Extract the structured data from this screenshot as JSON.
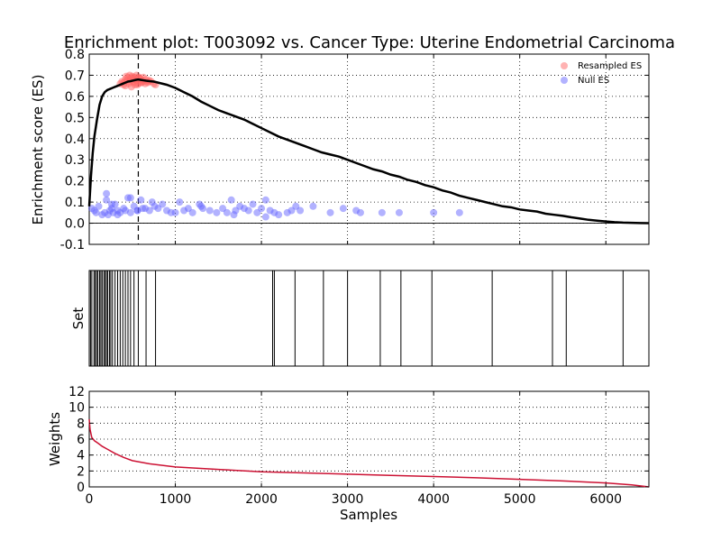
{
  "figure": {
    "title": "Enrichment plot: T003092 vs. Cancer Type: Uterine Endometrial Carcinoma",
    "xlabel": "Samples"
  },
  "chart_data": [
    {
      "type": "line",
      "panel": "enrichment",
      "ylabel": "Enrichment score (ES)",
      "xlim": [
        0,
        6500
      ],
      "ylim": [
        -0.1,
        0.8
      ],
      "yticks": [
        -0.1,
        0.0,
        0.1,
        0.2,
        0.3,
        0.4,
        0.5,
        0.6,
        0.7,
        0.8
      ],
      "xticks": [
        0,
        1000,
        2000,
        3000,
        4000,
        5000,
        6000
      ],
      "grid": true,
      "legend": {
        "position": "top-right",
        "entries": [
          "Resampled ES",
          "Null ES"
        ]
      },
      "peak_x": 570,
      "series": [
        {
          "name": "ES",
          "color": "#000000",
          "x": [
            0,
            20,
            40,
            60,
            90,
            120,
            150,
            180,
            210,
            240,
            270,
            300,
            330,
            360,
            390,
            420,
            450,
            480,
            510,
            540,
            570,
            600,
            630,
            660,
            700,
            750,
            800,
            900,
            1000,
            1100,
            1200,
            1300,
            1400,
            1500,
            1600,
            1700,
            1800,
            1900,
            2000,
            2100,
            2200,
            2300,
            2400,
            2500,
            2600,
            2700,
            2800,
            2900,
            3000,
            3100,
            3200,
            3300,
            3400,
            3500,
            3600,
            3700,
            3800,
            3900,
            4000,
            4100,
            4200,
            4300,
            4400,
            4500,
            4600,
            4700,
            4800,
            4900,
            5000,
            5100,
            5200,
            5300,
            5400,
            5500,
            5600,
            5700,
            5800,
            5900,
            6000,
            6100,
            6200,
            6300,
            6400,
            6500
          ],
          "y": [
            0.08,
            0.22,
            0.33,
            0.41,
            0.49,
            0.56,
            0.6,
            0.62,
            0.63,
            0.635,
            0.64,
            0.645,
            0.65,
            0.655,
            0.66,
            0.665,
            0.67,
            0.672,
            0.675,
            0.678,
            0.68,
            0.678,
            0.676,
            0.674,
            0.672,
            0.67,
            0.665,
            0.655,
            0.64,
            0.62,
            0.6,
            0.575,
            0.555,
            0.535,
            0.52,
            0.505,
            0.49,
            0.47,
            0.45,
            0.43,
            0.41,
            0.395,
            0.38,
            0.365,
            0.35,
            0.335,
            0.325,
            0.315,
            0.3,
            0.285,
            0.27,
            0.255,
            0.245,
            0.23,
            0.22,
            0.205,
            0.195,
            0.18,
            0.17,
            0.155,
            0.145,
            0.13,
            0.12,
            0.11,
            0.1,
            0.09,
            0.08,
            0.075,
            0.065,
            0.06,
            0.055,
            0.045,
            0.04,
            0.035,
            0.028,
            0.022,
            0.016,
            0.012,
            0.008,
            0.005,
            0.003,
            0.002,
            0.001,
            0.0
          ]
        },
        {
          "name": "Resampled ES",
          "type": "scatter",
          "color": "#ff6666",
          "x": [
            360,
            380,
            400,
            420,
            440,
            450,
            470,
            480,
            500,
            510,
            520,
            540,
            550,
            560,
            580,
            600,
            620,
            640,
            660,
            680,
            700,
            720,
            750,
            770,
            420,
            460,
            490,
            530,
            570,
            610,
            650,
            690,
            430,
            470,
            510,
            550,
            590,
            630,
            400,
            520,
            560,
            600
          ],
          "y": [
            0.66,
            0.67,
            0.665,
            0.68,
            0.675,
            0.69,
            0.67,
            0.685,
            0.695,
            0.67,
            0.68,
            0.69,
            0.675,
            0.685,
            0.69,
            0.68,
            0.675,
            0.67,
            0.68,
            0.665,
            0.675,
            0.67,
            0.66,
            0.655,
            0.65,
            0.66,
            0.645,
            0.655,
            0.66,
            0.665,
            0.66,
            0.67,
            0.695,
            0.7,
            0.69,
            0.7,
            0.685,
            0.69,
            0.655,
            0.665,
            0.655,
            0.665
          ]
        },
        {
          "name": "Null ES",
          "type": "scatter",
          "color": "#6666ff",
          "x": [
            30,
            60,
            80,
            110,
            150,
            180,
            200,
            220,
            240,
            260,
            280,
            300,
            330,
            360,
            400,
            420,
            450,
            480,
            520,
            560,
            600,
            650,
            700,
            730,
            760,
            800,
            850,
            900,
            950,
            1000,
            1050,
            1100,
            1150,
            1200,
            1280,
            1320,
            1400,
            1480,
            1550,
            1600,
            1650,
            1700,
            1750,
            1800,
            1850,
            1900,
            1950,
            2000,
            2050,
            2100,
            2150,
            2200,
            2300,
            2350,
            2400,
            2600,
            2800,
            2950,
            3100,
            3150,
            3400,
            3600,
            4000,
            4300,
            200,
            260,
            330,
            480,
            560,
            620,
            1300,
            1680,
            2050,
            2450
          ],
          "y": [
            0.07,
            0.06,
            0.05,
            0.08,
            0.04,
            0.05,
            0.14,
            0.04,
            0.06,
            0.07,
            0.05,
            0.09,
            0.06,
            0.05,
            0.07,
            0.06,
            0.12,
            0.05,
            0.08,
            0.06,
            0.11,
            0.07,
            0.06,
            0.1,
            0.08,
            0.07,
            0.09,
            0.06,
            0.05,
            0.05,
            0.1,
            0.06,
            0.07,
            0.05,
            0.09,
            0.07,
            0.06,
            0.05,
            0.07,
            0.05,
            0.11,
            0.06,
            0.08,
            0.07,
            0.06,
            0.09,
            0.05,
            0.07,
            0.11,
            0.06,
            0.05,
            0.04,
            0.05,
            0.06,
            0.08,
            0.08,
            0.05,
            0.07,
            0.06,
            0.05,
            0.05,
            0.05,
            0.05,
            0.05,
            0.11,
            0.09,
            0.04,
            0.12,
            0.06,
            0.07,
            0.08,
            0.04,
            0.03,
            0.06
          ]
        }
      ]
    },
    {
      "type": "rug",
      "panel": "set",
      "ylabel": "Set",
      "xlim": [
        0,
        6500
      ],
      "positions": [
        15,
        30,
        55,
        70,
        85,
        100,
        120,
        135,
        150,
        170,
        185,
        200,
        215,
        235,
        250,
        270,
        300,
        330,
        360,
        390,
        420,
        450,
        480,
        520,
        570,
        660,
        770,
        2130,
        2150,
        2390,
        2720,
        3000,
        3380,
        3620,
        3980,
        4680,
        5380,
        5540,
        6200
      ]
    },
    {
      "type": "line",
      "panel": "weights",
      "ylabel": "Weights",
      "xlim": [
        0,
        6500
      ],
      "ylim": [
        0,
        12
      ],
      "yticks": [
        0,
        2,
        4,
        6,
        8,
        10,
        12
      ],
      "xticks": [
        0,
        1000,
        2000,
        3000,
        4000,
        5000,
        6000
      ],
      "grid": true,
      "series": [
        {
          "name": "Weights",
          "color": "#cc1133",
          "x": [
            0,
            10,
            30,
            60,
            100,
            150,
            200,
            300,
            400,
            500,
            700,
            1000,
            1500,
            2000,
            2500,
            3000,
            3500,
            4000,
            4500,
            5000,
            5500,
            6000,
            6300,
            6500
          ],
          "y": [
            8.5,
            7.2,
            6.2,
            5.8,
            5.5,
            5.1,
            4.8,
            4.2,
            3.7,
            3.3,
            2.9,
            2.5,
            2.2,
            1.9,
            1.75,
            1.6,
            1.45,
            1.3,
            1.15,
            0.95,
            0.75,
            0.5,
            0.25,
            0.0
          ]
        }
      ]
    }
  ]
}
